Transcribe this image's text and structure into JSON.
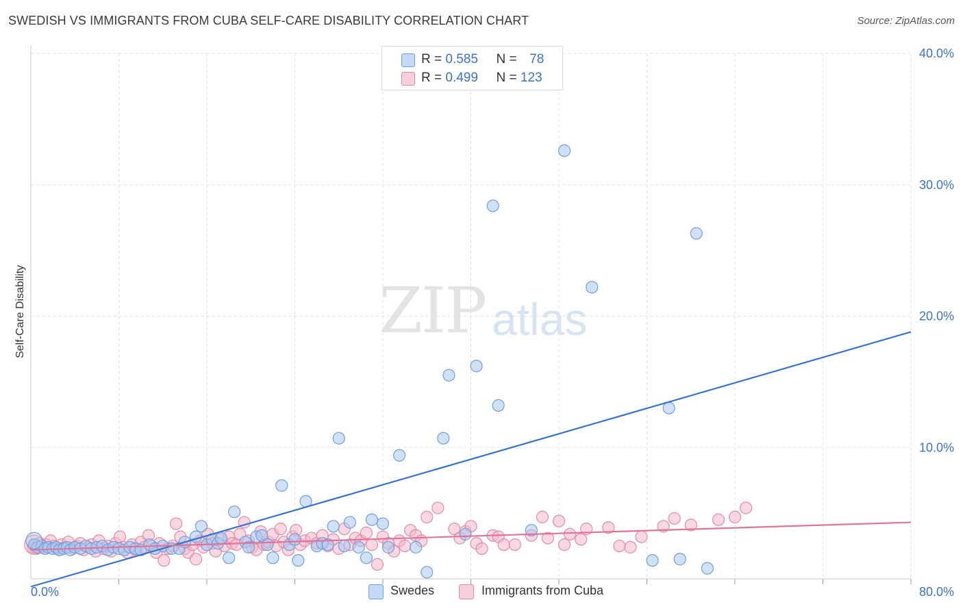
{
  "header": {
    "title": "SWEDISH VS IMMIGRANTS FROM CUBA SELF-CARE DISABILITY CORRELATION CHART",
    "source": "Source: ZipAtlas.com"
  },
  "watermark": {
    "zip": "ZIP",
    "atlas": "atlas"
  },
  "legend": {
    "rows": [
      {
        "r_label": "R =",
        "r_value": "0.585",
        "n_label": "N =",
        "n_value": "78",
        "color": "#a9c8f0"
      },
      {
        "r_label": "R =",
        "r_value": "0.499",
        "n_label": "N =",
        "n_value": "123",
        "color": "#f5b8ca"
      }
    ]
  },
  "bottom_legend": {
    "swedes": "Swedes",
    "cuba": "Immigrants from Cuba"
  },
  "chart_data": {
    "type": "scatter",
    "title": "SWEDISH VS IMMIGRANTS FROM CUBA SELF-CARE DISABILITY CORRELATION CHART",
    "xlabel": "",
    "ylabel": "Self-Care Disability",
    "xlim": [
      0,
      80
    ],
    "ylim": [
      0,
      40
    ],
    "x_tick_labels": [
      "0.0%",
      "80.0%"
    ],
    "y_tick_labels": [
      "10.0%",
      "20.0%",
      "30.0%",
      "40.0%"
    ],
    "y_ticks": [
      10,
      20,
      30,
      40
    ],
    "grid": true,
    "legend_position": "top-center",
    "series": [
      {
        "name": "Swedes",
        "color": "#a9c8f0",
        "stroke": "#6f9fdc",
        "trend": {
          "x": [
            0,
            80
          ],
          "y": [
            -0.6,
            18.8
          ],
          "color": "#3372d4"
        },
        "points": [
          [
            0.3,
            2.6
          ],
          [
            0.6,
            2.4
          ],
          [
            1.0,
            2.5
          ],
          [
            1.3,
            2.3
          ],
          [
            1.6,
            2.4
          ],
          [
            2.0,
            2.3
          ],
          [
            2.3,
            2.4
          ],
          [
            2.6,
            2.2
          ],
          [
            3.0,
            2.3
          ],
          [
            3.3,
            2.4
          ],
          [
            3.6,
            2.2
          ],
          [
            4.0,
            2.4
          ],
          [
            4.5,
            2.3
          ],
          [
            5.0,
            2.5
          ],
          [
            5.5,
            2.3
          ],
          [
            6.0,
            2.4
          ],
          [
            6.5,
            2.5
          ],
          [
            7.0,
            2.2
          ],
          [
            7.5,
            2.4
          ],
          [
            8.0,
            2.3
          ],
          [
            8.5,
            2.2
          ],
          [
            9.0,
            2.4
          ],
          [
            9.5,
            2.3
          ],
          [
            10.0,
            2.2
          ],
          [
            10.8,
            2.6
          ],
          [
            11.3,
            2.3
          ],
          [
            12.0,
            2.5
          ],
          [
            12.8,
            2.3
          ],
          [
            13.5,
            2.3
          ],
          [
            14.0,
            2.8
          ],
          [
            15.0,
            3.2
          ],
          [
            15.5,
            4.0
          ],
          [
            16.0,
            2.6
          ],
          [
            16.5,
            3.0
          ],
          [
            17.0,
            2.7
          ],
          [
            17.3,
            3.1
          ],
          [
            18.0,
            1.6
          ],
          [
            18.5,
            5.1
          ],
          [
            19.5,
            2.8
          ],
          [
            19.8,
            2.4
          ],
          [
            20.5,
            3.2
          ],
          [
            21.0,
            3.3
          ],
          [
            21.5,
            2.6
          ],
          [
            22.0,
            1.6
          ],
          [
            22.8,
            7.1
          ],
          [
            23.5,
            2.6
          ],
          [
            24.0,
            3.0
          ],
          [
            24.3,
            1.4
          ],
          [
            25.0,
            5.9
          ],
          [
            26.0,
            2.5
          ],
          [
            26.5,
            2.7
          ],
          [
            27.0,
            2.6
          ],
          [
            27.5,
            4.0
          ],
          [
            28.0,
            10.7
          ],
          [
            28.5,
            2.5
          ],
          [
            29.0,
            4.3
          ],
          [
            29.8,
            2.4
          ],
          [
            30.5,
            1.6
          ],
          [
            31.0,
            4.5
          ],
          [
            32.0,
            4.2
          ],
          [
            32.5,
            2.4
          ],
          [
            33.5,
            9.4
          ],
          [
            35.0,
            2.4
          ],
          [
            36.0,
            0.5
          ],
          [
            37.5,
            10.7
          ],
          [
            38.0,
            15.5
          ],
          [
            39.5,
            3.4
          ],
          [
            40.5,
            16.2
          ],
          [
            42.0,
            28.4
          ],
          [
            42.5,
            13.2
          ],
          [
            45.5,
            3.7
          ],
          [
            48.5,
            32.6
          ],
          [
            51.0,
            22.2
          ],
          [
            56.5,
            1.4
          ],
          [
            58.0,
            13.0
          ],
          [
            59.0,
            1.5
          ],
          [
            60.5,
            26.3
          ],
          [
            61.5,
            0.8
          ]
        ]
      },
      {
        "name": "Immigrants from Cuba",
        "color": "#f5b8ca",
        "stroke": "#e58aa6",
        "trend": {
          "x": [
            0,
            80
          ],
          "y": [
            2.2,
            4.3
          ],
          "color": "#e3729a"
        },
        "points": [
          [
            0.3,
            2.5
          ],
          [
            0.5,
            2.3
          ],
          [
            0.8,
            2.7
          ],
          [
            1.1,
            2.4
          ],
          [
            1.4,
            2.6
          ],
          [
            1.8,
            2.9
          ],
          [
            2.1,
            2.5
          ],
          [
            2.4,
            2.3
          ],
          [
            2.8,
            2.6
          ],
          [
            3.1,
            2.4
          ],
          [
            3.4,
            2.8
          ],
          [
            3.8,
            2.3
          ],
          [
            4.2,
            2.5
          ],
          [
            4.5,
            2.7
          ],
          [
            4.8,
            2.2
          ],
          [
            5.2,
            2.4
          ],
          [
            5.5,
            2.6
          ],
          [
            5.9,
            2.1
          ],
          [
            6.2,
            2.9
          ],
          [
            6.6,
            2.3
          ],
          [
            7.0,
            2.5
          ],
          [
            7.3,
            2.1
          ],
          [
            7.7,
            2.7
          ],
          [
            8.1,
            3.2
          ],
          [
            8.4,
            2.4
          ],
          [
            8.8,
            2.0
          ],
          [
            9.2,
            2.6
          ],
          [
            9.6,
            2.2
          ],
          [
            10.0,
            2.8
          ],
          [
            10.3,
            2.4
          ],
          [
            10.7,
            3.3
          ],
          [
            11.0,
            2.5
          ],
          [
            11.4,
            2.0
          ],
          [
            11.7,
            2.7
          ],
          [
            12.1,
            1.4
          ],
          [
            12.5,
            2.3
          ],
          [
            12.9,
            2.5
          ],
          [
            13.2,
            4.2
          ],
          [
            13.6,
            3.2
          ],
          [
            14.0,
            2.3
          ],
          [
            14.3,
            2.0
          ],
          [
            14.7,
            2.6
          ],
          [
            15.0,
            1.5
          ],
          [
            15.4,
            2.9
          ],
          [
            15.7,
            2.4
          ],
          [
            16.1,
            3.4
          ],
          [
            16.5,
            2.7
          ],
          [
            16.8,
            2.1
          ],
          [
            17.2,
            3.0
          ],
          [
            17.6,
            2.5
          ],
          [
            18.0,
            3.2
          ],
          [
            18.3,
            2.7
          ],
          [
            18.7,
            2.6
          ],
          [
            19.0,
            3.4
          ],
          [
            19.4,
            4.3
          ],
          [
            19.8,
            2.9
          ],
          [
            20.1,
            2.4
          ],
          [
            20.5,
            2.2
          ],
          [
            20.9,
            3.6
          ],
          [
            21.2,
            2.6
          ],
          [
            21.6,
            2.8
          ],
          [
            22.0,
            3.4
          ],
          [
            22.3,
            2.5
          ],
          [
            22.7,
            3.8
          ],
          [
            23.0,
            2.8
          ],
          [
            23.4,
            2.2
          ],
          [
            23.8,
            3.2
          ],
          [
            24.1,
            3.7
          ],
          [
            24.5,
            2.6
          ],
          [
            24.9,
            2.9
          ],
          [
            25.5,
            3.1
          ],
          [
            26.0,
            2.7
          ],
          [
            26.5,
            3.3
          ],
          [
            27.0,
            2.5
          ],
          [
            27.5,
            3.0
          ],
          [
            28.0,
            2.3
          ],
          [
            28.5,
            3.8
          ],
          [
            29.0,
            2.6
          ],
          [
            29.5,
            3.1
          ],
          [
            30.0,
            2.9
          ],
          [
            30.5,
            3.5
          ],
          [
            31.0,
            2.6
          ],
          [
            31.5,
            1.1
          ],
          [
            32.0,
            3.2
          ],
          [
            32.5,
            2.7
          ],
          [
            33.0,
            2.1
          ],
          [
            33.5,
            2.9
          ],
          [
            34.0,
            2.5
          ],
          [
            34.5,
            3.7
          ],
          [
            35.0,
            3.3
          ],
          [
            35.5,
            2.9
          ],
          [
            36.0,
            4.7
          ],
          [
            37.0,
            5.4
          ],
          [
            38.5,
            3.8
          ],
          [
            39.0,
            3.1
          ],
          [
            39.5,
            3.6
          ],
          [
            40.0,
            4.0
          ],
          [
            40.5,
            2.7
          ],
          [
            41.0,
            2.3
          ],
          [
            42.0,
            3.3
          ],
          [
            42.5,
            3.2
          ],
          [
            43.0,
            2.6
          ],
          [
            44.0,
            2.6
          ],
          [
            45.5,
            3.3
          ],
          [
            46.5,
            4.7
          ],
          [
            47.0,
            3.1
          ],
          [
            48.0,
            4.4
          ],
          [
            48.5,
            2.6
          ],
          [
            49.0,
            3.4
          ],
          [
            50.0,
            3.0
          ],
          [
            50.5,
            3.8
          ],
          [
            52.5,
            3.9
          ],
          [
            53.5,
            2.5
          ],
          [
            54.5,
            2.4
          ],
          [
            55.5,
            3.2
          ],
          [
            57.5,
            4.0
          ],
          [
            58.5,
            4.6
          ],
          [
            60.0,
            4.1
          ],
          [
            62.5,
            4.5
          ],
          [
            64.0,
            4.7
          ],
          [
            65.0,
            5.4
          ],
          [
            0.2,
            2.4
          ],
          [
            0.4,
            2.6
          ]
        ]
      }
    ]
  }
}
